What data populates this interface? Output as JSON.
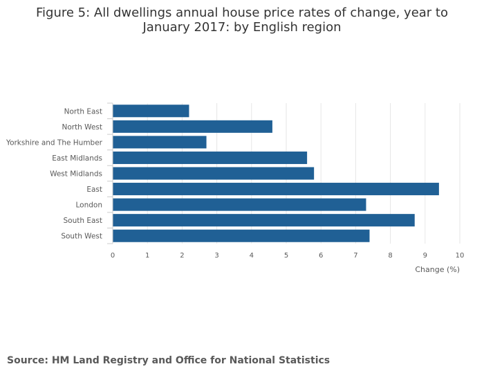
{
  "title": "Figure 5: All dwellings annual house price rates of change, year to January 2017: by English region",
  "source": "Source: HM Land Registry and Office for National Statistics",
  "colors": {
    "bar": "#206095",
    "grid": "#e6e6e6",
    "axis": "#cccccc",
    "text": "#595959"
  },
  "chart_data": {
    "type": "bar",
    "orientation": "horizontal",
    "title": "Figure 5: All dwellings annual house price rates of change, year to January 2017: by English region",
    "xlabel": "Change (%)",
    "ylabel": "",
    "categories": [
      "North East",
      "North West",
      "Yorkshire and The Humber",
      "East Midlands",
      "West Midlands",
      "East",
      "London",
      "South East",
      "South West"
    ],
    "values": [
      2.2,
      4.6,
      2.7,
      5.6,
      5.8,
      9.4,
      7.3,
      8.7,
      7.4
    ],
    "xlim": [
      0,
      10
    ],
    "xticks": [
      "0",
      "1",
      "2",
      "3",
      "4",
      "5",
      "6",
      "7",
      "8",
      "9",
      "10"
    ],
    "grid": true,
    "legend": "none"
  }
}
